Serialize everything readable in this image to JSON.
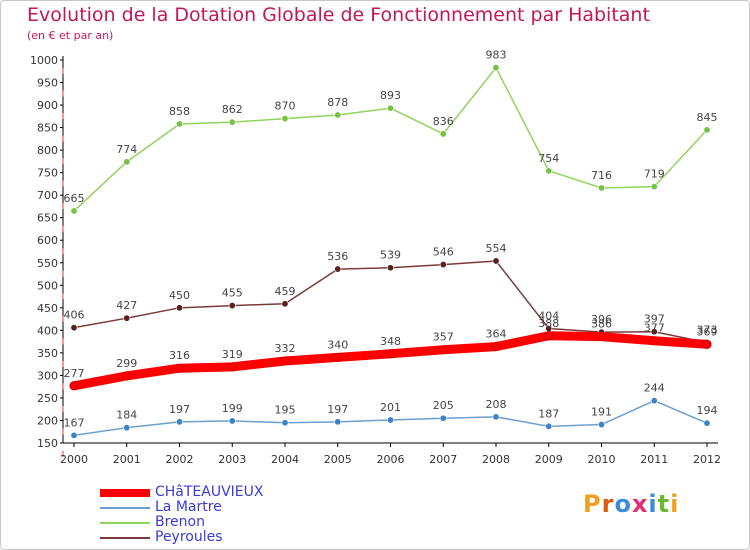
{
  "chart_data": {
    "type": "line",
    "title": "Evolution de la Dotation Globale de Fonctionnement par Habitant",
    "subtitle": "(en € et par an)",
    "xlabel": "",
    "ylabel": "",
    "ylim": [
      150,
      1000
    ],
    "yticks": [
      150,
      200,
      250,
      300,
      350,
      400,
      450,
      500,
      550,
      600,
      650,
      700,
      750,
      800,
      850,
      900,
      950,
      1000
    ],
    "categories": [
      "2000",
      "2001",
      "2002",
      "2003",
      "2004",
      "2005",
      "2006",
      "2007",
      "2008",
      "2009",
      "2010",
      "2011",
      "2012"
    ],
    "grid": false,
    "legend_position": "bottom-left",
    "series": [
      {
        "name": "Brenon",
        "color": "#8fd45b",
        "marker": "#76c043",
        "values": [
          665,
          774,
          858,
          862,
          870,
          878,
          893,
          836,
          983,
          754,
          716,
          719,
          845
        ]
      },
      {
        "name": "Peyroules",
        "color": "#7b3a3a",
        "marker": "#5a1f1f",
        "values": [
          406,
          427,
          450,
          455,
          459,
          536,
          539,
          546,
          554,
          404,
          396,
          397,
          373
        ]
      },
      {
        "name": "CHâTEAUVIEUX",
        "color": "#ff0000",
        "marker": "#ff0000",
        "values": [
          277,
          299,
          316,
          319,
          332,
          340,
          348,
          357,
          364,
          388,
          386,
          377,
          369
        ]
      },
      {
        "name": "La Martre",
        "color": "#6b9fd0",
        "marker": "#3c82c8",
        "values": [
          167,
          184,
          197,
          199,
          195,
          197,
          201,
          205,
          208,
          187,
          191,
          244,
          194
        ]
      }
    ]
  },
  "legend": [
    "CHâTEAUVIEUX",
    "La Martre",
    "Brenon",
    "Peyroules"
  ],
  "logo": {
    "text": "Proxiti",
    "colors": [
      "#f0a020",
      "#e05a10",
      "#3c8cd8",
      "#e03070",
      "#3c8cd8",
      "#6cb830",
      "#f0a020"
    ]
  }
}
